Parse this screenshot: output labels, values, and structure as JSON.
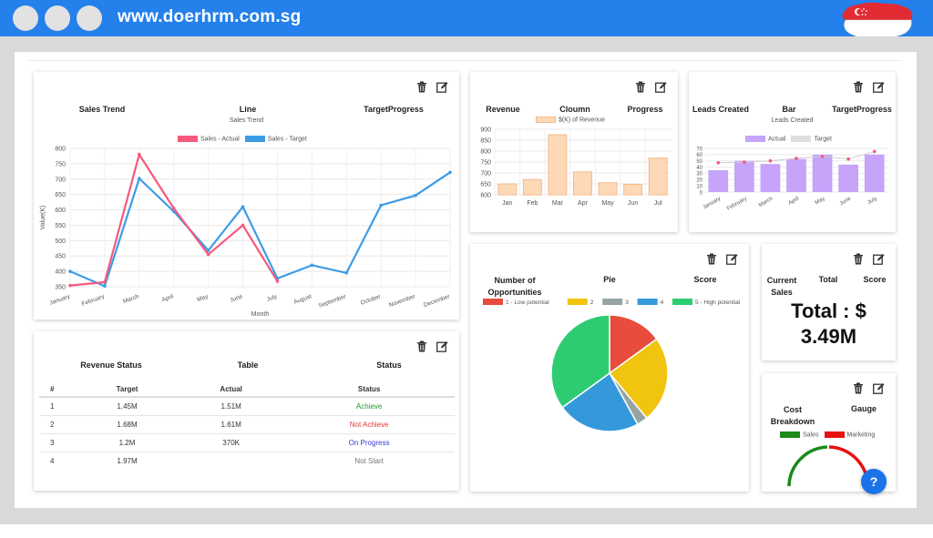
{
  "browser": {
    "url": "www.doerhrm.com.sg"
  },
  "colors": {
    "topbar": "#2480ea",
    "actual": "#f4597c",
    "target": "#3d9ce6",
    "achieve": "#1a9b2e",
    "not_achieve": "#e53935",
    "on_progress": "#3b3bd8",
    "not_start": "#777777"
  },
  "sales_trend": {
    "header": [
      "Sales Trend",
      "Line",
      "TargetProgress"
    ],
    "title": "Sales Trend",
    "legend": [
      "Sales - Actual",
      "Sales - Target"
    ],
    "ylabel": "Value(K)",
    "xlabel": "Month"
  },
  "revenue": {
    "header": [
      "Revenue",
      "Cloumn",
      "Progress"
    ],
    "legend": "$(K) of Revenue"
  },
  "leads": {
    "header": [
      "Leads Created",
      "Bar",
      "TargetProgress"
    ],
    "title": "Leads Created",
    "legend": [
      "Actual",
      "Target"
    ]
  },
  "revenue_status": {
    "header": [
      "Revenue Status",
      "Table",
      "Status"
    ],
    "columns": [
      "#",
      "Target",
      "Actual",
      "Status"
    ],
    "rows": [
      {
        "num": "1",
        "target": "1.45M",
        "actual": "1.51M",
        "status": "Achieve"
      },
      {
        "num": "2",
        "target": "1.68M",
        "actual": "1.61M",
        "status": "Not Achieve"
      },
      {
        "num": "3",
        "target": "1.2M",
        "actual": "370K",
        "status": "On Progress"
      },
      {
        "num": "4",
        "target": "1.97M",
        "actual": "",
        "status": "Not Start"
      }
    ]
  },
  "opportunities": {
    "header": [
      "Number of Opportunities",
      "Pie",
      "Score"
    ],
    "legend": [
      "1 - Low potential",
      "2",
      "3",
      "4",
      "5 - High potential"
    ]
  },
  "current_sales": {
    "header": [
      "Current Sales",
      "Total",
      "Score"
    ],
    "total_line1": "Total : $",
    "total_line2": "3.49M"
  },
  "cost_breakdown": {
    "header": [
      "Cost Breakdown",
      "Gauge"
    ],
    "legend": [
      "Sales",
      "Marketing"
    ]
  },
  "help": {
    "label": "?"
  },
  "chart_data": [
    {
      "type": "line",
      "title": "Sales Trend",
      "xlabel": "Month",
      "ylabel": "Value(K)",
      "categories": [
        "January",
        "February",
        "March",
        "April",
        "May",
        "June",
        "July",
        "August",
        "September",
        "October",
        "November",
        "December"
      ],
      "ylim": [
        350,
        800
      ],
      "yticks": [
        350,
        400,
        450,
        500,
        550,
        600,
        650,
        700,
        750,
        800
      ],
      "series": [
        {
          "name": "Sales - Actual",
          "color": "#f4597c",
          "values": [
            354,
            365,
            780,
            605,
            455,
            550,
            368,
            null,
            null,
            null,
            null,
            null
          ]
        },
        {
          "name": "Sales - Target",
          "color": "#3d9ce6",
          "values": [
            400,
            352,
            702,
            595,
            468,
            610,
            377,
            420,
            395,
            615,
            647,
            722
          ]
        }
      ],
      "legend_position": "top",
      "grid": true
    },
    {
      "type": "bar",
      "categories": [
        "Jan",
        "Feb",
        "Mar",
        "Apr",
        "May",
        "Jun",
        "Jul"
      ],
      "ylim": [
        600,
        900
      ],
      "yticks": [
        600,
        650,
        700,
        750,
        800,
        850,
        900
      ],
      "series": [
        {
          "name": "$(K) of Revenue",
          "color": "#fdd9b8",
          "values": [
            650,
            670,
            875,
            705,
            655,
            648,
            768
          ]
        }
      ],
      "legend_position": "top",
      "grid": true
    },
    {
      "type": "bar",
      "title": "Leads Created",
      "categories": [
        "January",
        "February",
        "March",
        "April",
        "May",
        "June",
        "July"
      ],
      "ylim": [
        0,
        70
      ],
      "yticks": [
        0,
        10,
        20,
        30,
        40,
        50,
        60,
        70
      ],
      "series": [
        {
          "name": "Actual",
          "color": "#c5a4fa",
          "values": [
            35,
            50,
            45,
            53,
            60,
            44,
            60
          ]
        },
        {
          "name": "Target",
          "color": "#f4597c",
          "values": [
            47,
            48,
            50,
            54,
            57,
            53,
            65
          ]
        }
      ],
      "legend_position": "top",
      "grid": true
    },
    {
      "type": "pie",
      "categories": [
        "1 - Low potential",
        "2",
        "3",
        "4",
        "5 - High potential"
      ],
      "values": [
        15,
        24,
        3,
        23,
        35
      ],
      "colors": [
        "#e74c3c",
        "#f1c40f",
        "#95a5a6",
        "#3498db",
        "#2ecc71"
      ],
      "legend_position": "top"
    }
  ]
}
